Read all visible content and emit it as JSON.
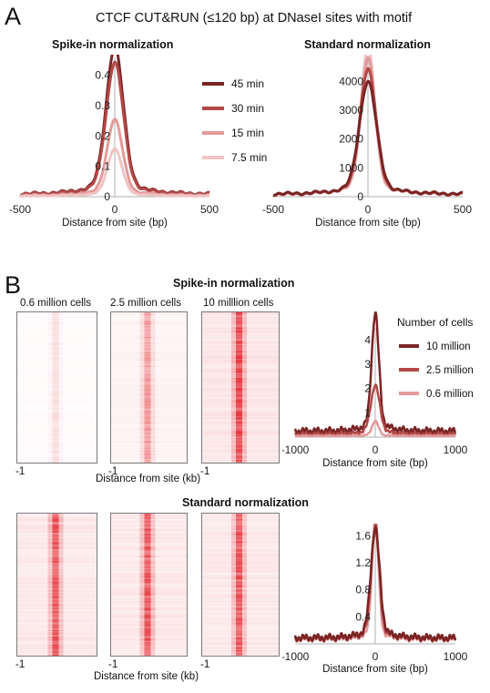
{
  "panel_a": {
    "letter": "A",
    "title": "CTCF CUT&RUN (≤120 bp) at DNaseI sites with motif",
    "spike_subtitle": "Spike-in normalization",
    "standard_subtitle": "Standard normalization",
    "xlabel": "Distance from site (bp)"
  },
  "panel_b": {
    "letter": "B",
    "spike_title": "Spike-in normalization",
    "standard_title": "Standard normalization",
    "heatmap_labels": [
      "0.6 million cells",
      "2.5 million cells",
      "10 milllion cells"
    ],
    "heatmap_tick": "-1",
    "heatmap_xlabel_top": "Distance from site (kb)",
    "heatmap_xlabel_bottom": "Distance from  site (kb)",
    "profile_xlabel": "Distance from site (bp)"
  },
  "colors": {
    "dark": "#7a2424",
    "mid": "#b24848",
    "light": "#e39a9a",
    "lighter": "#f1c4c4",
    "heat_red": "#e0161d",
    "axis_gray": "#b0b0b0"
  },
  "chart_data": [
    {
      "id": "a-spike",
      "type": "line",
      "title": "Spike-in normalization",
      "xlabel": "Distance from site (bp)",
      "ylabel": "",
      "xlim": [
        -500,
        500
      ],
      "ylim": [
        0,
        0.45
      ],
      "xticks": [
        -500,
        0,
        500
      ],
      "xtick_labels": [
        "-500",
        "0",
        "500"
      ],
      "yticks": [
        0,
        0.1,
        0.2,
        0.3,
        0.4
      ],
      "ytick_labels": [
        "0",
        "0.1",
        "0.2",
        "0.3",
        "0.4"
      ],
      "legend_position": "right",
      "series": [
        {
          "name": "45 min",
          "color": "#7a2424",
          "width": 3,
          "peak": 0.435,
          "base": 0.008,
          "sigma": 45
        },
        {
          "name": "30 min",
          "color": "#b24848",
          "width": 3,
          "peak": 0.39,
          "base": 0.007,
          "sigma": 45
        },
        {
          "name": "15 min",
          "color": "#e39a9a",
          "width": 3,
          "peak": 0.225,
          "base": 0.004,
          "sigma": 40
        },
        {
          "name": "7.5 min",
          "color": "#f1c4c4",
          "width": 3,
          "peak": 0.14,
          "base": 0.002,
          "sigma": 38
        }
      ]
    },
    {
      "id": "a-standard",
      "type": "line",
      "title": "Standard normalization",
      "xlabel": "Distance from site (bp)",
      "ylabel": "",
      "xlim": [
        -500,
        500
      ],
      "ylim": [
        0,
        4800
      ],
      "xticks": [
        -500,
        0,
        500
      ],
      "xtick_labels": [
        "-500",
        "0",
        "500"
      ],
      "yticks": [
        0,
        1000,
        2000,
        3000,
        4000
      ],
      "ytick_labels": [
        "0",
        "1000",
        "2000",
        "3000",
        "4000"
      ],
      "series": [
        {
          "name": "7.5 min",
          "color": "#f1c4c4",
          "width": 3,
          "peak": 4650,
          "base": 70,
          "sigma": 36
        },
        {
          "name": "15 min",
          "color": "#e39a9a",
          "width": 3,
          "peak": 4250,
          "base": 75,
          "sigma": 38
        },
        {
          "name": "30 min",
          "color": "#b24848",
          "width": 3,
          "peak": 3900,
          "base": 80,
          "sigma": 42
        },
        {
          "name": "45 min",
          "color": "#7a2424",
          "width": 3,
          "peak": 3500,
          "base": 85,
          "sigma": 45
        }
      ]
    },
    {
      "id": "b-spike-profile",
      "type": "line",
      "title": "",
      "xlabel": "Distance from site (bp)",
      "ylabel": "",
      "xlim": [
        -1000,
        1000
      ],
      "ylim": [
        0,
        4.5
      ],
      "xticks": [
        -1000,
        0,
        1000
      ],
      "xtick_labels": [
        "-1000",
        "0",
        "1000"
      ],
      "yticks": [
        1,
        2,
        3,
        4
      ],
      "ytick_labels": [
        "1",
        "2",
        "3",
        "4"
      ],
      "legend_title": "Number of cells",
      "legend_position": "top-right",
      "series": [
        {
          "name": "10 million",
          "color": "#7a2424",
          "width": 2.5,
          "peak": 4.35,
          "base": 0.25,
          "sigma": 45
        },
        {
          "name": "2.5 million",
          "color": "#b24848",
          "width": 2.5,
          "peak": 1.8,
          "base": 0.12,
          "sigma": 55
        },
        {
          "name": "0.6 million",
          "color": "#e39a9a",
          "width": 2.5,
          "peak": 0.55,
          "base": 0.05,
          "sigma": 40
        }
      ]
    },
    {
      "id": "b-standard-profile",
      "type": "line",
      "title": "",
      "xlabel": "Distance from site (bp)",
      "ylabel": "",
      "xlim": [
        -1000,
        1000
      ],
      "ylim": [
        0,
        1.7
      ],
      "xticks": [
        -1000,
        0,
        1000
      ],
      "xtick_labels": [
        "-1000",
        "0",
        "1000"
      ],
      "yticks": [
        0.4,
        0.8,
        1.2,
        1.6
      ],
      "ytick_labels": [
        "0.4",
        "0.8",
        "1.2",
        "1.6"
      ],
      "series": [
        {
          "name": "0.6 million",
          "color": "#e39a9a",
          "width": 2.5,
          "peak": 1.6,
          "base": 0.07,
          "sigma": 40
        },
        {
          "name": "2.5 million",
          "color": "#b24848",
          "width": 2.5,
          "peak": 1.5,
          "base": 0.08,
          "sigma": 50
        },
        {
          "name": "10 million",
          "color": "#7a2424",
          "width": 2.5,
          "peak": 1.45,
          "base": 0.09,
          "sigma": 55
        }
      ]
    },
    {
      "id": "b-heatmaps",
      "type": "heatmap",
      "x_range_kb": [
        -1,
        1
      ],
      "intensity": {
        "spike": [
          0.12,
          0.4,
          0.85
        ],
        "standard": [
          0.75,
          0.75,
          0.75
        ]
      }
    }
  ]
}
